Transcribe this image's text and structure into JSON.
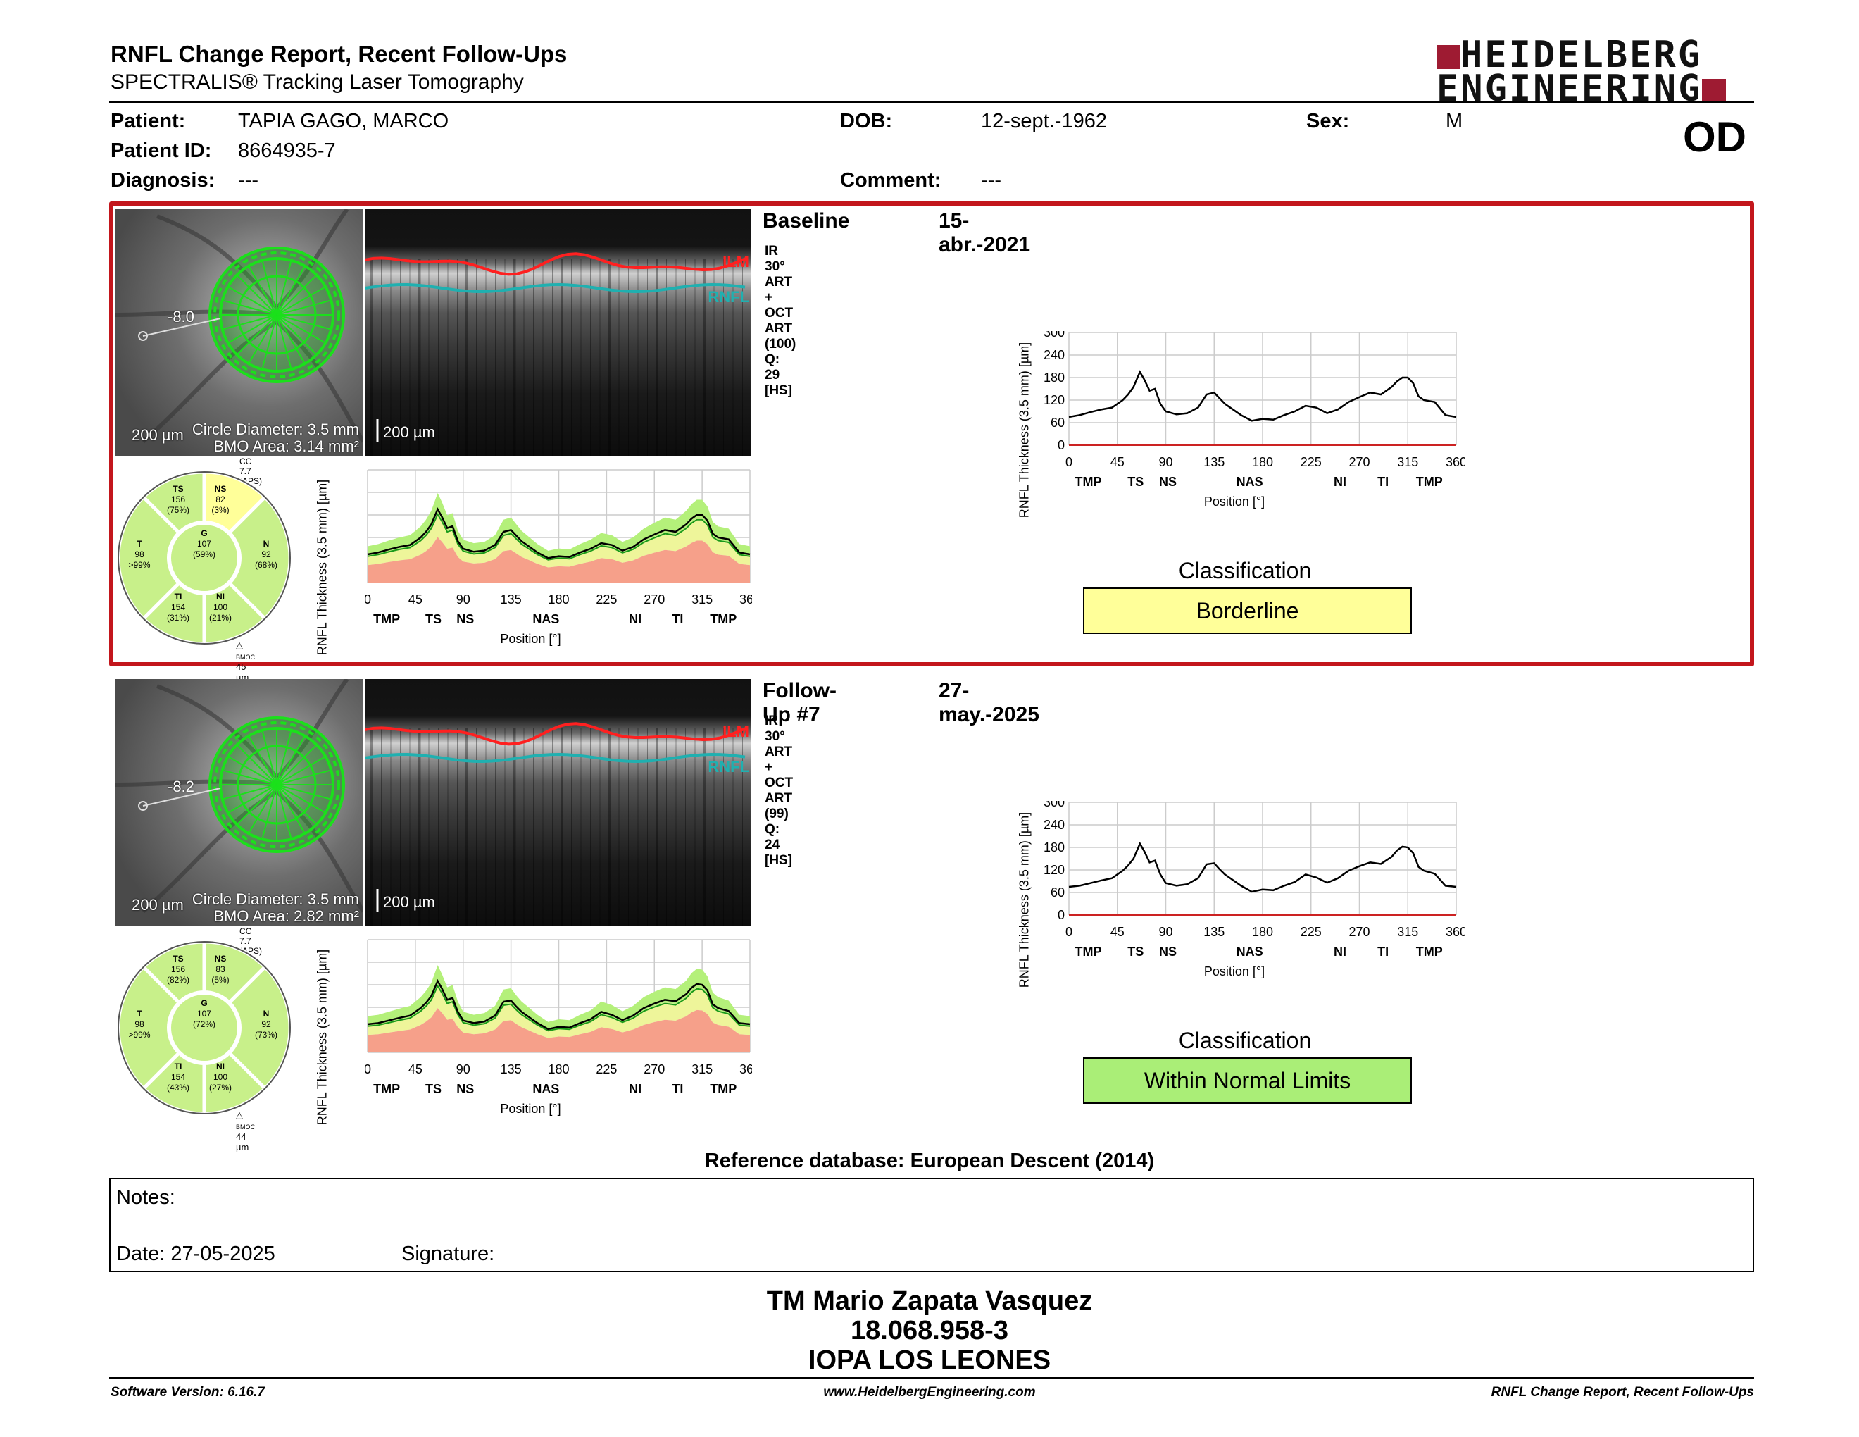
{
  "header": {
    "title": "RNFL Change Report, Recent Follow-Ups",
    "subtitle": "SPECTRALIS® Tracking Laser Tomography",
    "logo_line1": "HEIDELBERG",
    "logo_line2": "ENGINEERING",
    "eye": "OD"
  },
  "patient": {
    "patient_label": "Patient:",
    "patient_value": "TAPIA GAGO, MARCO",
    "id_label": "Patient ID:",
    "id_value": "8664935-7",
    "diagnosis_label": "Diagnosis:",
    "diagnosis_value": "---",
    "dob_label": "DOB:",
    "dob_value": "12-sept.-1962",
    "comment_label": "Comment:",
    "comment_value": "---",
    "sex_label": "Sex:",
    "sex_value": "M"
  },
  "exams": [
    {
      "name": "Baseline",
      "date": "15-abr.-2021",
      "scan_info": "IR 30° ART + OCT ART (100) Q: 29 [HS]",
      "fundus_angle": "-8.0",
      "scale_fundus": "200 µm",
      "circle_diameter": "Circle Diameter: 3.5 mm",
      "bmo_area": "BMO Area: 3.14 mm²",
      "scale_oct": "200 µm",
      "ilm": "ILM",
      "rnfl": "RNFL",
      "cc": "CC 7.7 (APS)",
      "bmo_delta": "45 µm",
      "sectors": {
        "TS": {
          "label": "TS",
          "value": "156",
          "pct": "(75%)"
        },
        "NS": {
          "label": "NS",
          "value": "82",
          "pct": "(3%)"
        },
        "T": {
          "label": "T",
          "value": "98",
          "pct": ">99%"
        },
        "G": {
          "label": "G",
          "value": "107",
          "pct": "(59%)"
        },
        "N": {
          "label": "N",
          "value": "92",
          "pct": "(68%)"
        },
        "TI": {
          "label": "TI",
          "value": "154",
          "pct": "(31%)"
        },
        "NI": {
          "label": "NI",
          "value": "100",
          "pct": "(21%)"
        }
      },
      "classification_label": "Classification",
      "classification": "Borderline",
      "classification_color": "#ffff99"
    },
    {
      "name": "Follow-Up #7",
      "date": "27-may.-2025",
      "scan_info": "IR 30° ART + OCT ART (99) Q: 24 [HS]",
      "fundus_angle": "-8.2",
      "scale_fundus": "200 µm",
      "circle_diameter": "Circle Diameter: 3.5 mm",
      "bmo_area": "BMO Area: 2.82 mm²",
      "scale_oct": "200 µm",
      "ilm": "ILM",
      "rnfl": "RNFL",
      "cc": "CC 7.7 (APS)",
      "bmo_delta": "44 µm",
      "sectors": {
        "TS": {
          "label": "TS",
          "value": "156",
          "pct": "(82%)"
        },
        "NS": {
          "label": "NS",
          "value": "83",
          "pct": "(5%)"
        },
        "T": {
          "label": "T",
          "value": "98",
          "pct": ">99%"
        },
        "G": {
          "label": "G",
          "value": "107",
          "pct": "(72%)"
        },
        "N": {
          "label": "N",
          "value": "92",
          "pct": "(73%)"
        },
        "TI": {
          "label": "TI",
          "value": "154",
          "pct": "(43%)"
        },
        "NI": {
          "label": "NI",
          "value": "100",
          "pct": "(27%)"
        }
      },
      "classification_label": "Classification",
      "classification": "Within Normal Limits",
      "classification_color": "#aaee77"
    }
  ],
  "chart_data": [
    {
      "type": "line",
      "title": "",
      "xlabel": "Position [°]",
      "ylabel": "RNFL Thickness (3.5 mm) [µm]",
      "xlim": [
        0,
        360
      ],
      "ylim": [
        0,
        300
      ],
      "x_ticks": [
        "0",
        "45",
        "90",
        "135",
        "180",
        "225",
        "270",
        "315",
        "360"
      ],
      "y_ticks": [
        "0",
        "60",
        "120",
        "180",
        "240",
        "300"
      ],
      "region_labels": [
        "TMP",
        "TS",
        "NS",
        "NAS",
        "NI",
        "TI",
        "TMP"
      ],
      "region_positions": [
        18,
        62,
        92,
        168,
        252,
        292,
        335
      ],
      "series": [
        {
          "x": [
            0,
            10,
            20,
            30,
            40,
            50,
            55,
            60,
            66,
            70,
            75,
            80,
            85,
            90,
            100,
            110,
            120,
            128,
            135,
            140,
            145,
            150,
            160,
            170,
            180,
            190,
            200,
            210,
            220,
            230,
            240,
            250,
            260,
            270,
            280,
            290,
            300,
            305,
            310,
            315,
            320,
            325,
            330,
            340,
            350,
            360
          ],
          "y": [
            75,
            80,
            88,
            95,
            100,
            120,
            135,
            155,
            195,
            175,
            145,
            150,
            110,
            90,
            82,
            85,
            100,
            135,
            140,
            125,
            110,
            100,
            80,
            65,
            70,
            68,
            80,
            90,
            105,
            100,
            85,
            95,
            115,
            128,
            140,
            135,
            155,
            170,
            180,
            180,
            165,
            130,
            120,
            115,
            80,
            75
          ]
        }
      ]
    },
    {
      "type": "line",
      "title": "",
      "xlabel": "Position [°]",
      "ylabel": "RNFL Thickness (3.5 mm) [µm]",
      "xlim": [
        0,
        360
      ],
      "ylim": [
        0,
        300
      ],
      "x_ticks": [
        "0",
        "45",
        "90",
        "135",
        "180",
        "225",
        "270",
        "315",
        "360"
      ],
      "y_ticks": [
        "0",
        "60",
        "120",
        "180",
        "240",
        "300"
      ],
      "region_labels": [
        "TMP",
        "TS",
        "NS",
        "NAS",
        "NI",
        "TI",
        "TMP"
      ],
      "region_positions": [
        18,
        62,
        92,
        168,
        252,
        292,
        335
      ],
      "series": [
        {
          "x": [
            0,
            10,
            20,
            30,
            40,
            50,
            55,
            60,
            66,
            70,
            75,
            80,
            85,
            90,
            100,
            110,
            120,
            128,
            135,
            140,
            145,
            150,
            160,
            170,
            180,
            190,
            200,
            210,
            220,
            230,
            240,
            250,
            260,
            270,
            280,
            290,
            300,
            305,
            310,
            315,
            320,
            325,
            330,
            340,
            350,
            360
          ],
          "y": [
            75,
            78,
            85,
            92,
            98,
            118,
            132,
            150,
            190,
            170,
            140,
            145,
            108,
            85,
            78,
            82,
            98,
            135,
            138,
            122,
            108,
            98,
            78,
            62,
            68,
            66,
            78,
            88,
            108,
            100,
            86,
            98,
            118,
            130,
            140,
            136,
            155,
            172,
            182,
            180,
            165,
            128,
            118,
            110,
            78,
            75
          ]
        }
      ]
    }
  ],
  "reference_db": "Reference database: European Descent (2014)",
  "notes": {
    "notes_label": "Notes:",
    "date_label": "Date: 27-05-2025",
    "signature_label": "Signature:"
  },
  "signature_block": {
    "name": "TM Mario Zapata Vasquez",
    "rut": "18.068.958-3",
    "org": "IOPA LOS LEONES"
  },
  "footer": {
    "software": "Software Version: 6.16.7",
    "website": "www.HeidelbergEngineering.com",
    "report": "RNFL Change Report, Recent Follow-Ups"
  },
  "colors": {
    "accent_red": "#c3161c",
    "brand": "#9e1b32",
    "normal_green": "#b4f07a",
    "borderline_yellow": "#ffff99",
    "outside_red": "#f6a08a",
    "ilm_red": "#ff2020",
    "rnfl_teal": "#1fb0b0"
  }
}
